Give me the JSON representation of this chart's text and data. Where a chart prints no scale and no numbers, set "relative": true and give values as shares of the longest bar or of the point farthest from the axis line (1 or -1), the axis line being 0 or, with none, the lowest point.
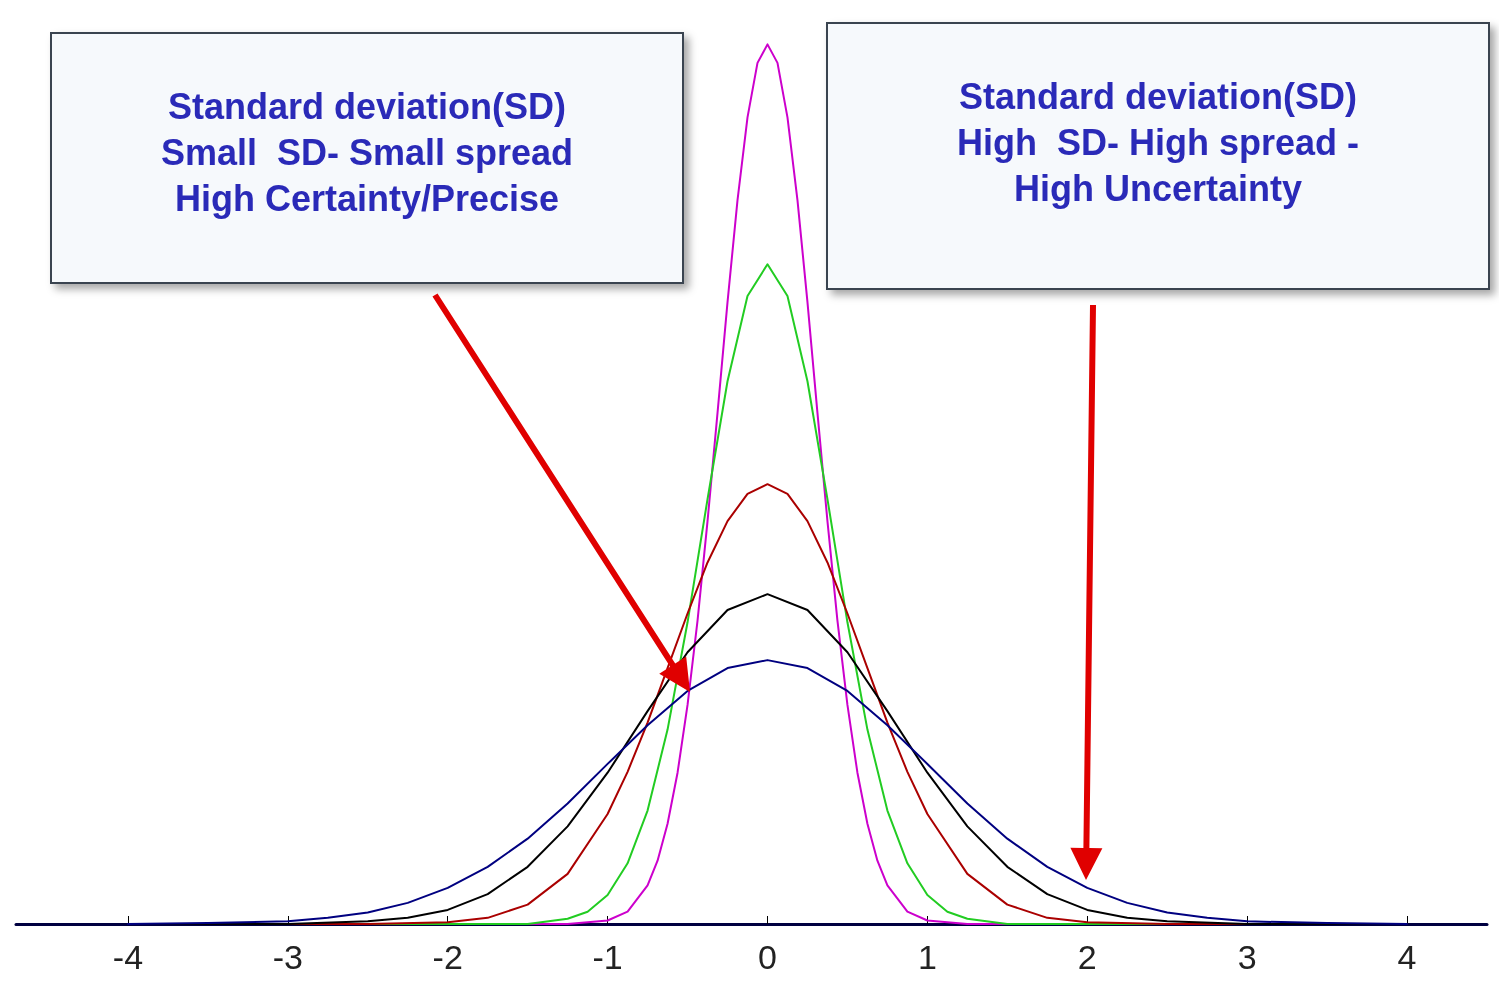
{
  "chart_data": {
    "type": "line",
    "relative": true,
    "annotations": [
      "Standard deviation(SD)\nSmall  SD- Small spread\nHigh Certainty/Precise",
      "Standard deviation(SD)\nHigh  SD- High spread -\nHigh Uncertainty"
    ],
    "xlim": [
      -4.7,
      4.5
    ],
    "xticks": [
      -4,
      -3,
      -2,
      -1,
      0,
      1,
      2,
      3,
      4
    ],
    "grid": false,
    "marker": "none",
    "line_style": "solid",
    "tick_labels": "x",
    "series": [
      {
        "color": "#cc00cc",
        "x": [
          -4,
          -1.5,
          -1.25,
          -1,
          -0.875,
          -0.75,
          -0.6875,
          -0.625,
          -0.5625,
          -0.5,
          -0.4375,
          -0.375,
          -0.3125,
          -0.25,
          -0.1875,
          -0.125,
          -0.0625,
          0,
          0.0625,
          0.125,
          0.1875,
          0.25,
          0.3125,
          0.375,
          0.4375,
          0.5,
          0.5625,
          0.625,
          0.6875,
          0.75,
          0.875,
          1,
          1.25,
          1.5,
          4
        ],
        "values": [
          0,
          0,
          0,
          0.004,
          0.014,
          0.044,
          0.072,
          0.114,
          0.172,
          0.249,
          0.345,
          0.458,
          0.581,
          0.707,
          0.823,
          0.917,
          0.979,
          1,
          0.979,
          0.917,
          0.823,
          0.707,
          0.581,
          0.458,
          0.345,
          0.249,
          0.172,
          0.114,
          0.072,
          0.044,
          0.014,
          0.004,
          0,
          0,
          0
        ]
      },
      {
        "color": "#22cc22",
        "x": [
          -4,
          -2,
          -1.5,
          -1.25,
          -1.125,
          -1,
          -0.875,
          -0.75,
          -0.625,
          -0.5,
          -0.375,
          -0.25,
          -0.125,
          0,
          0.125,
          0.25,
          0.375,
          0.5,
          0.625,
          0.75,
          0.875,
          1,
          1.125,
          1.25,
          1.5,
          2,
          4
        ],
        "values": [
          0,
          0,
          0,
          0.006,
          0.014,
          0.033,
          0.069,
          0.129,
          0.221,
          0.343,
          0.483,
          0.617,
          0.714,
          0.75,
          0.714,
          0.617,
          0.483,
          0.343,
          0.221,
          0.129,
          0.069,
          0.033,
          0.014,
          0.006,
          0,
          0,
          0
        ]
      },
      {
        "color": "#aa0000",
        "x": [
          -4,
          -3,
          -2.5,
          -2,
          -1.75,
          -1.5,
          -1.25,
          -1,
          -0.875,
          -0.75,
          -0.625,
          -0.5,
          -0.375,
          -0.25,
          -0.125,
          0,
          0.125,
          0.25,
          0.375,
          0.5,
          0.625,
          0.75,
          0.875,
          1,
          1.25,
          1.5,
          1.75,
          2,
          2.5,
          3,
          4
        ],
        "values": [
          0,
          0,
          0,
          0.002,
          0.007,
          0.022,
          0.057,
          0.125,
          0.173,
          0.229,
          0.291,
          0.353,
          0.411,
          0.458,
          0.489,
          0.5,
          0.489,
          0.458,
          0.411,
          0.353,
          0.291,
          0.229,
          0.173,
          0.125,
          0.057,
          0.022,
          0.007,
          0.002,
          0,
          0,
          0
        ]
      },
      {
        "color": "#000000",
        "x": [
          -4,
          -3.5,
          -3,
          -2.5,
          -2.25,
          -2,
          -1.75,
          -1.5,
          -1.25,
          -1,
          -0.75,
          -0.5,
          -0.25,
          0,
          0.25,
          0.5,
          0.75,
          1,
          1.25,
          1.5,
          1.75,
          2,
          2.25,
          2.5,
          3,
          3.5,
          4
        ],
        "values": [
          0,
          0,
          0,
          0.003,
          0.007,
          0.016,
          0.034,
          0.065,
          0.111,
          0.172,
          0.242,
          0.309,
          0.357,
          0.375,
          0.357,
          0.309,
          0.242,
          0.172,
          0.111,
          0.065,
          0.034,
          0.016,
          0.007,
          0.003,
          0,
          0,
          0
        ]
      },
      {
        "color": "#000080",
        "x": [
          -4,
          -3.5,
          -3,
          -2.75,
          -2.5,
          -2.25,
          -2,
          -1.75,
          -1.5,
          -1.25,
          -1,
          -0.75,
          -0.5,
          -0.25,
          0,
          0.25,
          0.5,
          0.75,
          1,
          1.25,
          1.5,
          1.75,
          2,
          2.25,
          2.5,
          2.75,
          3,
          3.5,
          4
        ],
        "values": [
          0,
          0.001,
          0.003,
          0.007,
          0.013,
          0.024,
          0.041,
          0.065,
          0.097,
          0.137,
          0.182,
          0.226,
          0.265,
          0.291,
          0.3,
          0.291,
          0.265,
          0.226,
          0.182,
          0.137,
          0.097,
          0.065,
          0.041,
          0.024,
          0.013,
          0.007,
          0.003,
          0.001,
          0
        ]
      }
    ]
  }
}
